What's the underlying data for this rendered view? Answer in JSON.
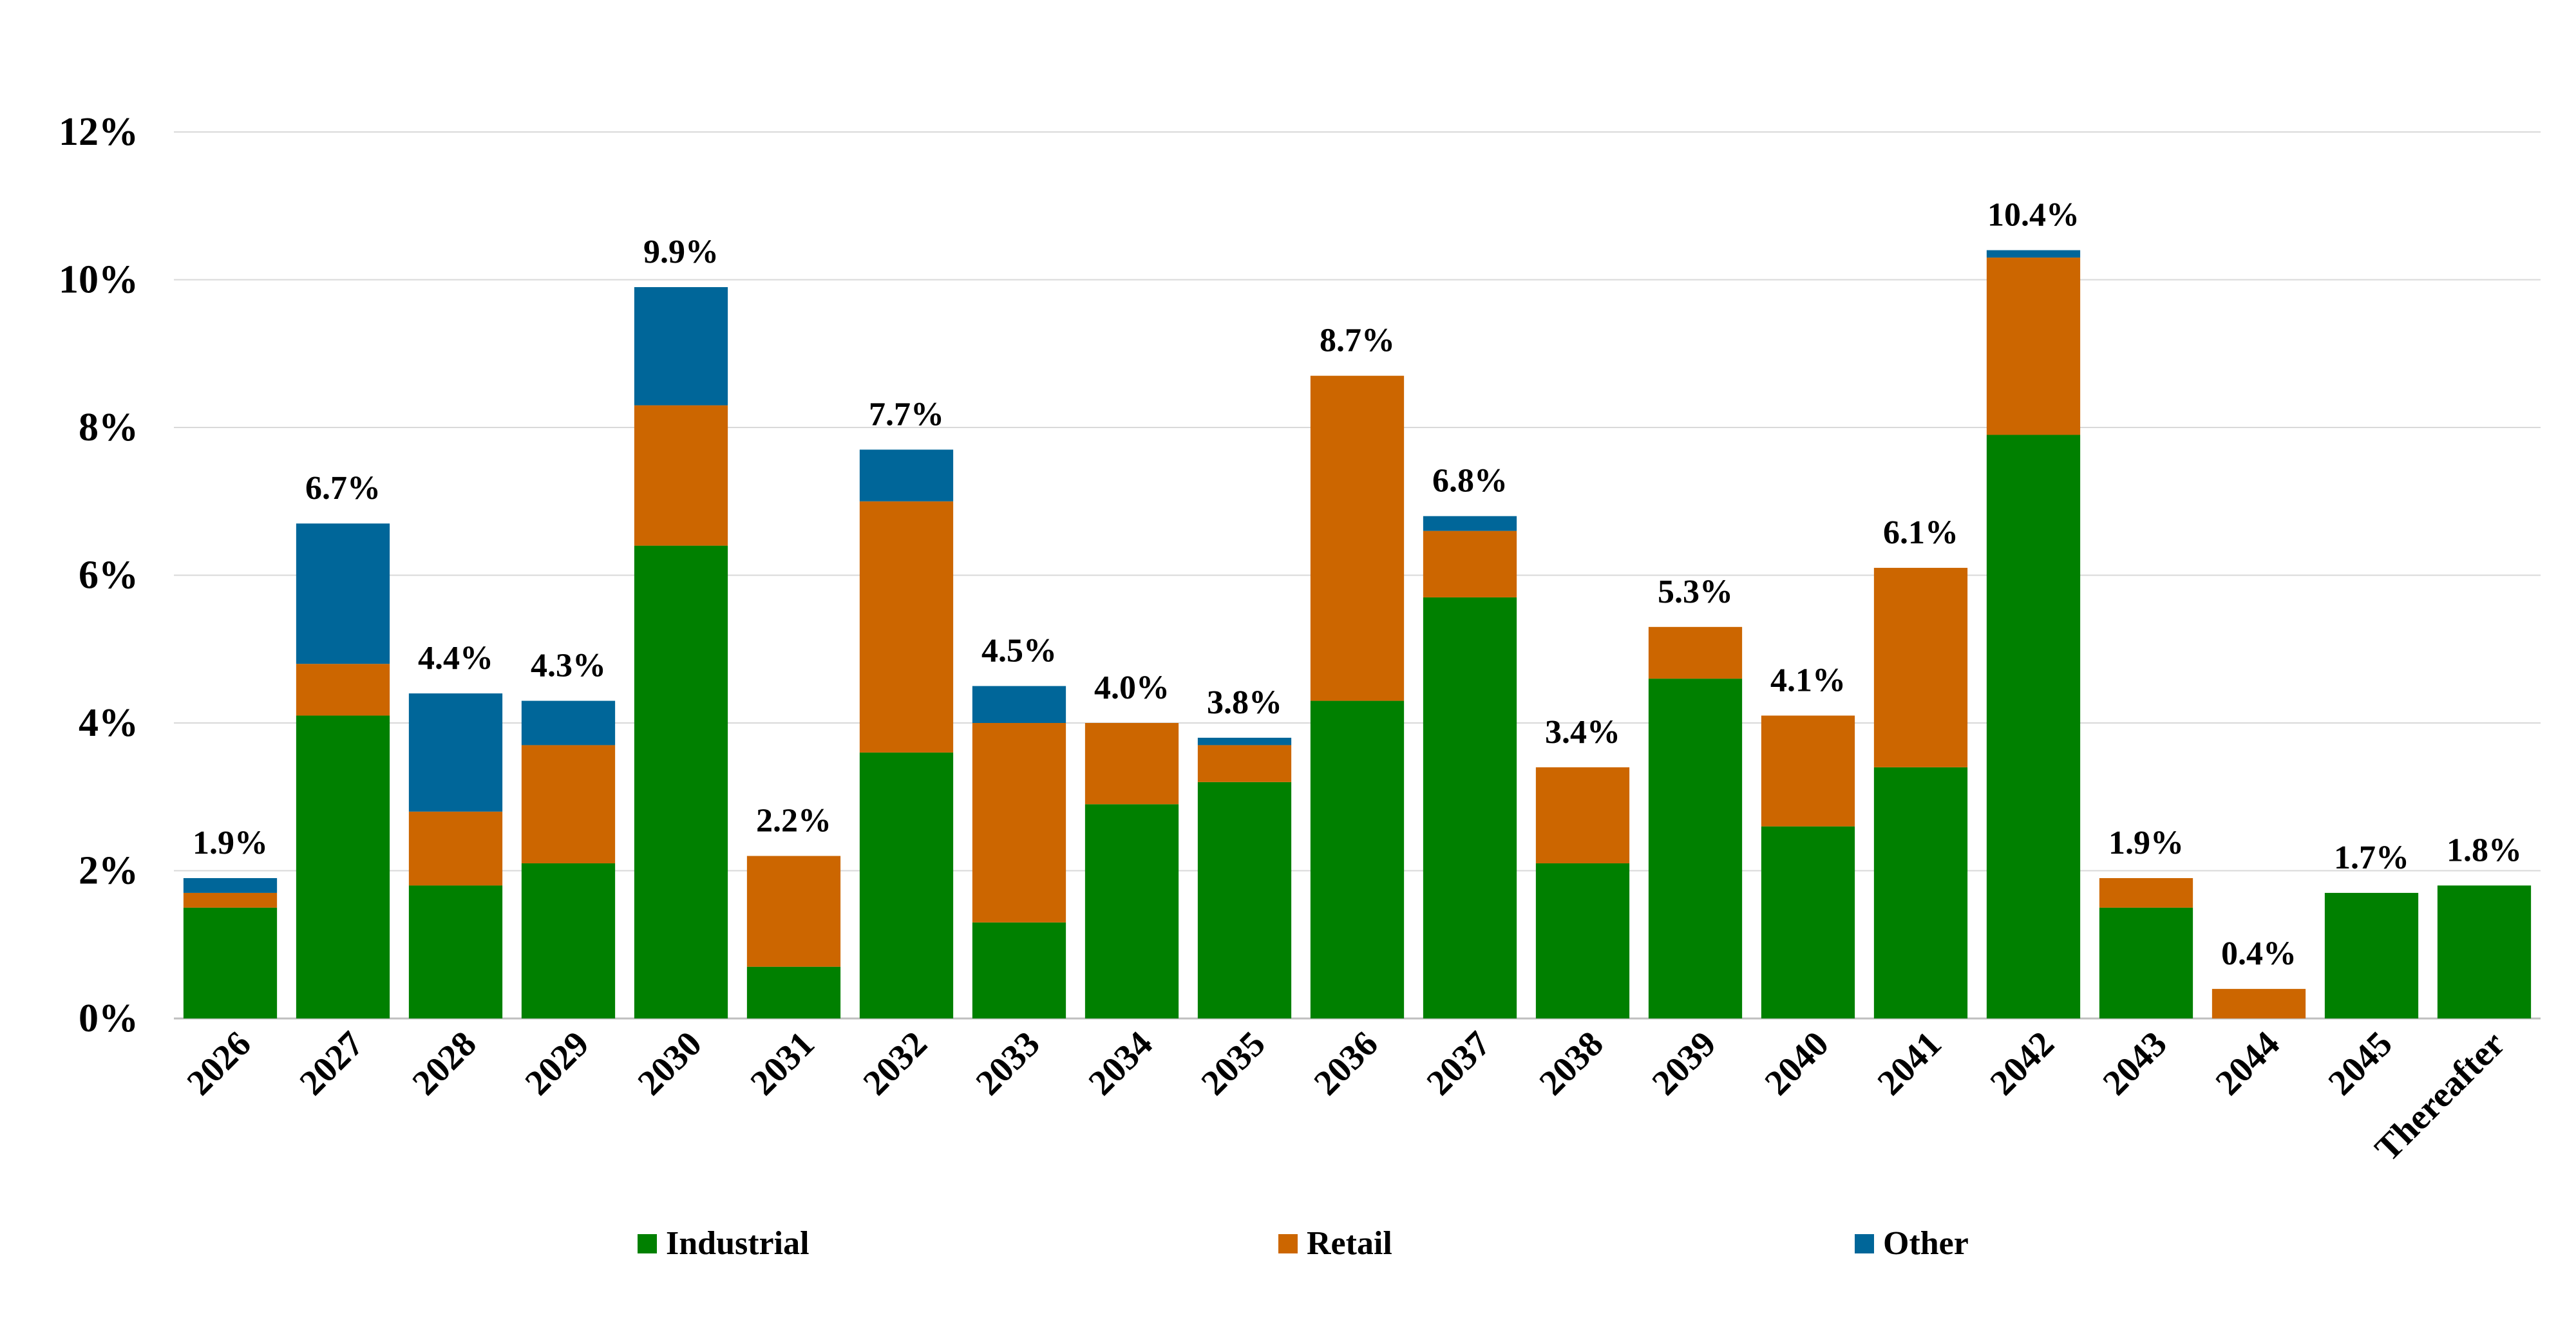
{
  "chart_data": {
    "type": "bar",
    "stacked": true,
    "categories": [
      "2026",
      "2027",
      "2028",
      "2029",
      "2030",
      "2031",
      "2032",
      "2033",
      "2034",
      "2035",
      "2036",
      "2037",
      "2038",
      "2039",
      "2040",
      "2041",
      "2042",
      "2043",
      "2044",
      "2045",
      "Thereafter"
    ],
    "series": [
      {
        "name": "Industrial",
        "color": "#008000",
        "values": [
          1.5,
          4.1,
          1.8,
          2.1,
          6.4,
          0.7,
          3.6,
          1.3,
          2.9,
          3.2,
          4.3,
          5.7,
          2.1,
          4.6,
          2.6,
          3.4,
          7.9,
          1.5,
          0.0,
          1.7,
          1.8
        ]
      },
      {
        "name": "Retail",
        "color": "#CC6600",
        "values": [
          0.2,
          0.7,
          1.0,
          1.6,
          1.9,
          1.5,
          3.4,
          2.7,
          1.1,
          0.5,
          4.4,
          0.9,
          1.3,
          0.7,
          1.5,
          2.7,
          2.4,
          0.4,
          0.4,
          0.0,
          0.0
        ]
      },
      {
        "name": "Other",
        "color": "#006699",
        "values": [
          0.2,
          1.9,
          1.6,
          0.6,
          1.6,
          0.0,
          0.7,
          0.5,
          0.0,
          0.1,
          0.0,
          0.2,
          0.0,
          0.0,
          0.0,
          0.0,
          0.1,
          0.0,
          0.0,
          0.0,
          0.0
        ]
      }
    ],
    "total_labels": [
      "1.9%",
      "6.7%",
      "4.4%",
      "4.3%",
      "9.9%",
      "2.2%",
      "7.7%",
      "4.5%",
      "4.0%",
      "3.8%",
      "8.7%",
      "6.8%",
      "3.4%",
      "5.3%",
      "4.1%",
      "6.1%",
      "10.4%",
      "1.9%",
      "0.4%",
      "1.7%",
      "1.8%"
    ],
    "y_ticks": [
      "0%",
      "2%",
      "4%",
      "6%",
      "8%",
      "10%",
      "12%"
    ],
    "ylim": [
      0,
      12
    ],
    "grid": true,
    "legend_position": "bottom",
    "title": "",
    "xlabel": "",
    "ylabel": ""
  }
}
